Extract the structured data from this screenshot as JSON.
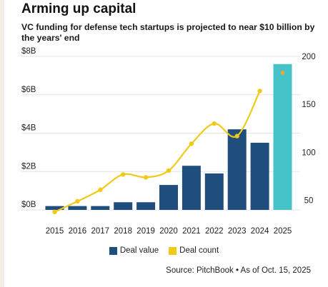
{
  "header": {
    "title": "Arming up capital",
    "subtitle": "VC funding for defense tech startups is projected to near $10 billion by the years' end"
  },
  "legend": {
    "deal_value": "Deal value",
    "deal_count": "Deal count"
  },
  "source": "Source: PitchBook • As of Oct. 15, 2025",
  "colors": {
    "deal_value": "#1f4e7d",
    "projected_value": "#45c3c8",
    "deal_count": "#f2c918",
    "projected_count": "#f0a830",
    "gridline": "#e3e3e3"
  },
  "chart_data": {
    "type": "bar",
    "categories": [
      "2015",
      "2016",
      "2017",
      "2018",
      "2019",
      "2020",
      "2021",
      "2022",
      "2023",
      "2024",
      "2025"
    ],
    "series": [
      {
        "name": "Deal value",
        "axis": "left",
        "type": "bar",
        "values": [
          0.2,
          0.2,
          0.2,
          0.4,
          0.4,
          1.3,
          2.3,
          1.9,
          4.2,
          3.5,
          7.6
        ],
        "projected_index": 10
      },
      {
        "name": "Deal count",
        "axis": "right",
        "type": "line",
        "values": [
          38,
          49,
          61,
          77,
          74,
          81,
          109,
          130,
          117,
          164,
          183
        ],
        "projected_index": 10
      }
    ],
    "y_left": {
      "ticks": [
        "$0B",
        "$2B",
        "$4B",
        "$6B",
        "$8B"
      ],
      "tick_values": [
        0,
        2,
        4,
        6,
        8
      ],
      "ylim": [
        0,
        8
      ]
    },
    "y_right": {
      "ticks": [
        "50",
        "100",
        "150",
        "200"
      ],
      "tick_values": [
        50,
        100,
        150,
        200
      ],
      "ylim": [
        20,
        200
      ]
    },
    "grid": true,
    "legend_position": "bottom-center"
  }
}
